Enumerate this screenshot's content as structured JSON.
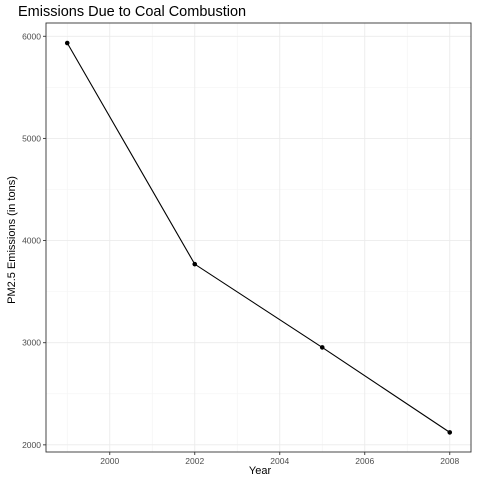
{
  "chart_data": {
    "type": "line",
    "title": "Emissions Due to Coal Combustion",
    "xlabel": "Year",
    "ylabel": "PM2.5 Emissions (in tons)",
    "x": [
      1999,
      2002,
      2005,
      2008
    ],
    "series": [
      {
        "values": [
          5934,
          3769,
          2954,
          2122
        ],
        "color": "#000000",
        "marker": "point"
      }
    ],
    "xlim": [
      1998.5,
      2008.5
    ],
    "ylim": [
      1930,
      6130
    ],
    "x_ticks": [
      2000,
      2002,
      2004,
      2006,
      2008
    ],
    "y_ticks": [
      2000,
      3000,
      4000,
      5000,
      6000
    ],
    "x_tick_labels": [
      "2000",
      "2002",
      "2004",
      "2006",
      "2008"
    ],
    "y_tick_labels": [
      "2000",
      "3000",
      "4000",
      "5000",
      "6000"
    ],
    "grid": true,
    "theme": "bw",
    "colors": {
      "background": "#ffffff",
      "panel_border": "#333333",
      "grid_major": "#ebebeb",
      "grid_minor": "#f3f3f3",
      "line": "#000000",
      "point": "#000000",
      "tick_text": "#4d4d4d",
      "axis_text": "#000000"
    }
  }
}
